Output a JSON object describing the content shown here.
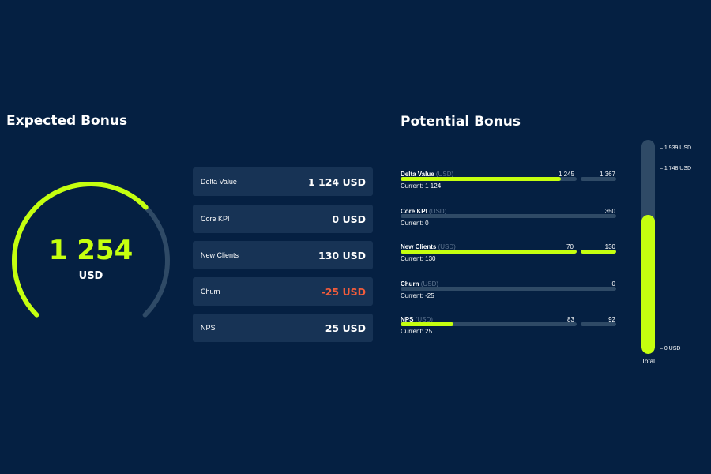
{
  "expected": {
    "title": "Expected Bonus",
    "value": "1 254",
    "unit": "USD",
    "progress": 0.67,
    "colors": {
      "fill": "#c5ff0f",
      "track": "#2f4a66"
    }
  },
  "kpis": [
    {
      "label": "Delta Value",
      "value": "1 124 USD",
      "color": "#ffffff"
    },
    {
      "label": "Core KPI",
      "value": "0 USD",
      "color": "#ffffff"
    },
    {
      "label": "New Clients",
      "value": "130 USD",
      "color": "#ffffff"
    },
    {
      "label": "Churn",
      "value": "-25 USD",
      "color": "#f25c3b"
    },
    {
      "label": "NPS",
      "value": "25 USD",
      "color": "#ffffff"
    }
  ],
  "potential": {
    "title": "Potential Bonus",
    "rows": [
      {
        "name": "Delta Value",
        "unit": "(USD)",
        "v1": "1 245",
        "v2": "1 367",
        "current": "Current: 1 124",
        "fill": 0.91,
        "secondary_fill": 0.0
      },
      {
        "name": "Core KPI",
        "unit": "(USD)",
        "v1": "",
        "v2": "350",
        "current": "Current: 0",
        "fill": 0.0,
        "secondary_fill": 0.0
      },
      {
        "name": "New Clients",
        "unit": "(USD)",
        "v1": "70",
        "v2": "130",
        "current": "Current: 130",
        "fill": 1.0,
        "secondary_fill": 1.0
      },
      {
        "name": "Churn",
        "unit": "(USD)",
        "v1": "",
        "v2": "0",
        "current": "Current: -25",
        "fill": 0.0,
        "secondary_fill": 0.0
      },
      {
        "name": "NPS",
        "unit": "(USD)",
        "v1": "83",
        "v2": "92",
        "current": "Current: 25",
        "fill": 0.3,
        "secondary_fill": 0.0
      }
    ]
  },
  "total": {
    "label": "Total",
    "ticks": [
      "1 939 USD",
      "1 748 USD",
      "0 USD"
    ],
    "fill": 0.65
  }
}
